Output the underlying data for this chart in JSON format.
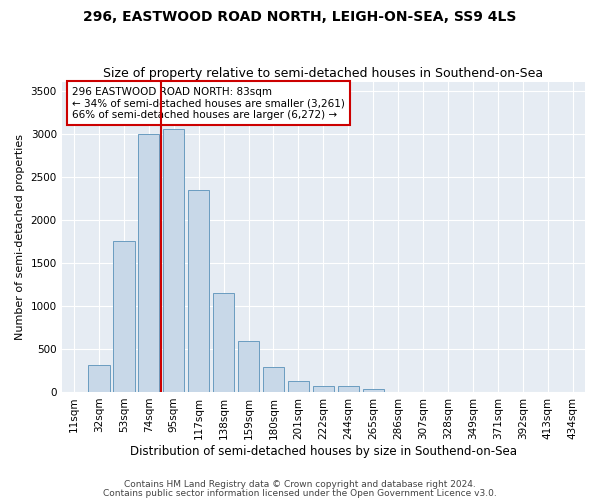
{
  "title1": "296, EASTWOOD ROAD NORTH, LEIGH-ON-SEA, SS9 4LS",
  "title2": "Size of property relative to semi-detached houses in Southend-on-Sea",
  "xlabel": "Distribution of semi-detached houses by size in Southend-on-Sea",
  "ylabel": "Number of semi-detached properties",
  "footnote1": "Contains HM Land Registry data © Crown copyright and database right 2024.",
  "footnote2": "Contains public sector information licensed under the Open Government Licence v3.0.",
  "annotation_title": "296 EASTWOOD ROAD NORTH: 83sqm",
  "annotation_line2": "← 34% of semi-detached houses are smaller (3,261)",
  "annotation_line3": "66% of semi-detached houses are larger (6,272) →",
  "bar_color": "#c8d8e8",
  "bar_edge_color": "#6a9cc0",
  "marker_color": "#cc0000",
  "annotation_box_color": "#ffffff",
  "annotation_box_edge": "#cc0000",
  "background_color": "#e6ecf3",
  "grid_color": "#ffffff",
  "categories": [
    "11sqm",
    "32sqm",
    "53sqm",
    "74sqm",
    "95sqm",
    "117sqm",
    "138sqm",
    "159sqm",
    "180sqm",
    "201sqm",
    "222sqm",
    "244sqm",
    "265sqm",
    "286sqm",
    "307sqm",
    "328sqm",
    "349sqm",
    "371sqm",
    "392sqm",
    "413sqm",
    "434sqm"
  ],
  "values": [
    5,
    310,
    1750,
    3000,
    3050,
    2350,
    1150,
    590,
    290,
    130,
    75,
    70,
    35,
    0,
    0,
    0,
    0,
    0,
    0,
    0,
    0
  ],
  "ylim": [
    0,
    3600
  ],
  "yticks": [
    0,
    500,
    1000,
    1500,
    2000,
    2500,
    3000,
    3500
  ],
  "red_line_x": 3.5,
  "title1_fontsize": 10,
  "title2_fontsize": 9,
  "xlabel_fontsize": 8.5,
  "ylabel_fontsize": 8,
  "tick_fontsize": 7.5,
  "annot_fontsize": 7.5,
  "footnote_fontsize": 6.5
}
